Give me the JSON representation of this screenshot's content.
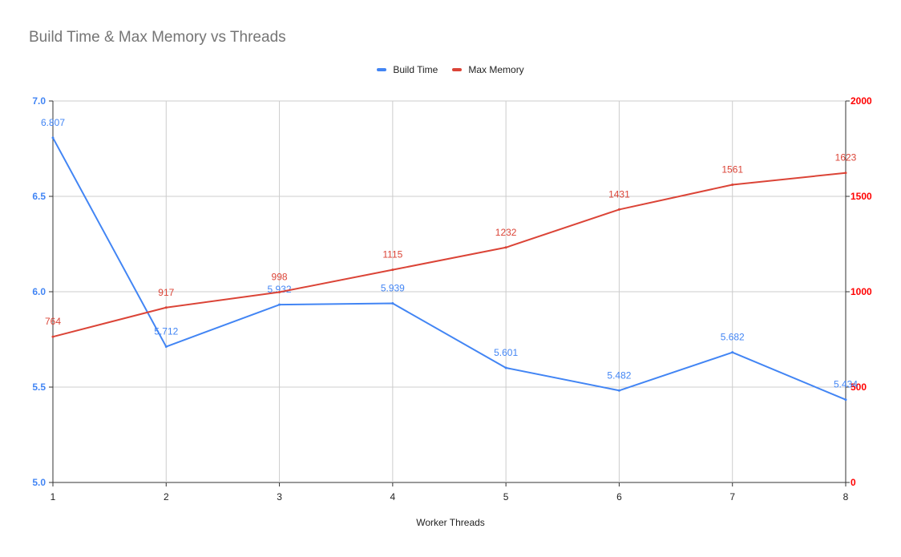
{
  "chart_data": {
    "type": "line",
    "title": "Build Time & Max Memory vs Threads",
    "xlabel": "Worker Threads",
    "x": [
      1,
      2,
      3,
      4,
      5,
      6,
      7,
      8
    ],
    "series": [
      {
        "name": "Build Time",
        "axis": "left",
        "color": "#4285f4",
        "values": [
          6.807,
          5.712,
          5.932,
          5.939,
          5.601,
          5.482,
          5.682,
          5.434
        ],
        "labels": [
          "6.807",
          "5.712",
          "5.932",
          "5.939",
          "5.601",
          "5.482",
          "5.682",
          "5.434"
        ]
      },
      {
        "name": "Max Memory",
        "axis": "right",
        "color": "#db4437",
        "values": [
          764,
          917,
          998,
          1115,
          1232,
          1431,
          1561,
          1623
        ],
        "labels": [
          "764",
          "917",
          "998",
          "1115",
          "1232",
          "1431",
          "1561",
          "1623"
        ]
      }
    ],
    "y_left": {
      "ylim": [
        5.0,
        7.0
      ],
      "ticks": [
        "5.0",
        "5.5",
        "6.0",
        "6.5",
        "7.0"
      ],
      "color": "#4285f4"
    },
    "y_right": {
      "ylim": [
        0,
        2000
      ],
      "ticks": [
        "0",
        "500",
        "1000",
        "1500",
        "2000"
      ],
      "color": "#ff0000"
    },
    "x_ticks": [
      "1",
      "2",
      "3",
      "4",
      "5",
      "6",
      "7",
      "8"
    ],
    "grid": true,
    "legend_position": "top"
  }
}
